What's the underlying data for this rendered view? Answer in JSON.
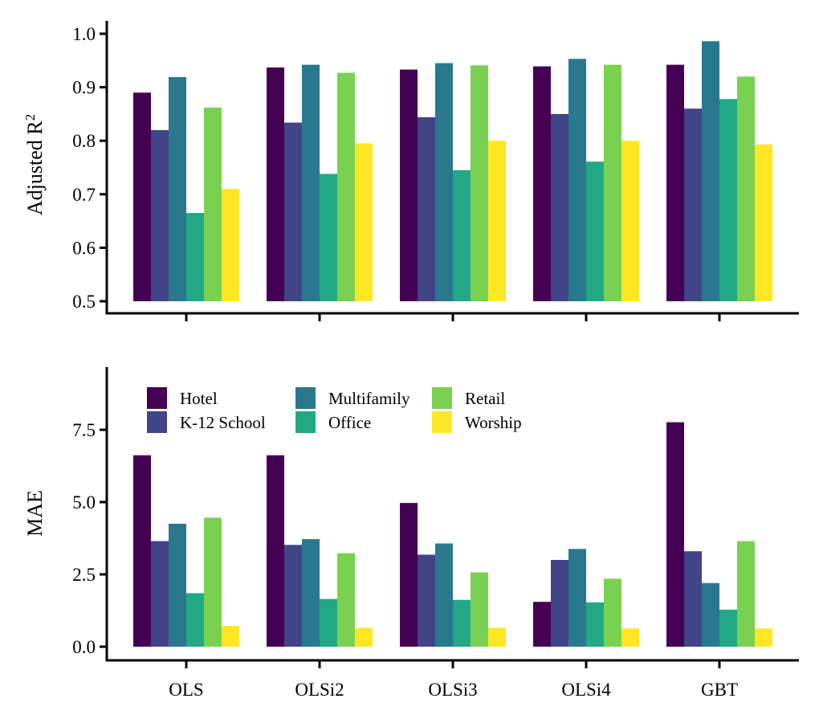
{
  "chart_data": [
    {
      "type": "bar",
      "panel": "top",
      "ylabel": "Adjusted R",
      "ylabel_superscript": "2",
      "ylim": [
        0.5,
        1.0
      ],
      "yticks": [
        "0.5",
        "0.6",
        "0.7",
        "0.8",
        "0.9",
        "1.0"
      ],
      "categories": [
        "OLS",
        "OLSi2",
        "OLSi3",
        "OLSi4",
        "GBT"
      ],
      "show_category_labels": false,
      "series": [
        {
          "name": "Hotel",
          "color": "#440154",
          "values": [
            0.89,
            0.937,
            0.933,
            0.939,
            0.942
          ]
        },
        {
          "name": "K-12 School",
          "color": "#414487",
          "values": [
            0.82,
            0.834,
            0.844,
            0.85,
            0.86
          ]
        },
        {
          "name": "Multifamily",
          "color": "#2A788E",
          "values": [
            0.919,
            0.942,
            0.945,
            0.953,
            0.986
          ]
        },
        {
          "name": "Office",
          "color": "#22A884",
          "values": [
            0.665,
            0.738,
            0.745,
            0.761,
            0.878
          ]
        },
        {
          "name": "Retail",
          "color": "#7AD151",
          "values": [
            0.862,
            0.927,
            0.941,
            0.942,
            0.92
          ]
        },
        {
          "name": "Worship",
          "color": "#FDE725",
          "values": [
            0.71,
            0.795,
            0.8,
            0.8,
            0.793
          ]
        }
      ]
    },
    {
      "type": "bar",
      "panel": "bottom",
      "ylabel": "MAE",
      "ylim": [
        0,
        9.5
      ],
      "yticks": [
        "0.0",
        "2.5",
        "5.0",
        "7.5"
      ],
      "categories": [
        "OLS",
        "OLSi2",
        "OLSi3",
        "OLSi4",
        "GBT"
      ],
      "show_category_labels": true,
      "legend": {
        "placement": "top-left",
        "columns": 3
      },
      "series": [
        {
          "name": "Hotel",
          "color": "#440154",
          "values": [
            6.62,
            6.62,
            4.97,
            1.55,
            7.76
          ]
        },
        {
          "name": "K-12 School",
          "color": "#414487",
          "values": [
            3.65,
            3.52,
            3.18,
            3.0,
            3.3
          ]
        },
        {
          "name": "Multifamily",
          "color": "#2A788E",
          "values": [
            4.25,
            3.72,
            3.57,
            3.38,
            2.2
          ]
        },
        {
          "name": "Office",
          "color": "#22A884",
          "values": [
            1.85,
            1.65,
            1.62,
            1.53,
            1.28
          ]
        },
        {
          "name": "Retail",
          "color": "#7AD151",
          "values": [
            4.46,
            3.23,
            2.57,
            2.35,
            3.65
          ]
        },
        {
          "name": "Worship",
          "color": "#FDE725",
          "values": [
            0.72,
            0.65,
            0.65,
            0.63,
            0.63
          ]
        }
      ]
    }
  ]
}
